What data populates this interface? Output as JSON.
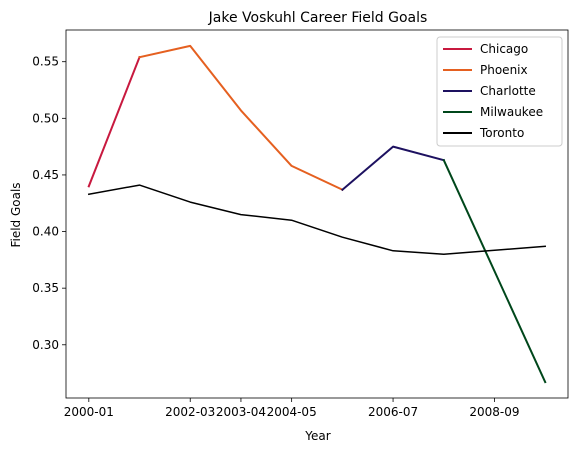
{
  "chart_data": {
    "type": "line",
    "title": "Jake Voskuhl Career Field Goals",
    "xlabel": "Year",
    "ylabel": "Field Goals",
    "x": [
      "2000-01",
      "2001-02",
      "2002-03",
      "2003-04",
      "2004-05",
      "2005-06",
      "2006-07",
      "2007-08",
      "2008-09",
      "2009-10"
    ],
    "xticks": [
      "2000-01",
      "2002-03",
      "2003-04",
      "2004-05",
      "2006-07",
      "2008-09"
    ],
    "yticks": [
      "0.30",
      "0.35",
      "0.40",
      "0.45",
      "0.50",
      "0.55"
    ],
    "ylim": [
      0.253,
      0.578
    ],
    "grid": false,
    "legend_position": "top-right",
    "series": [
      {
        "name": "Chicago",
        "color": "#c8193f",
        "points": [
          [
            "2000-01",
            0.44
          ],
          [
            "2001-02",
            0.554
          ]
        ]
      },
      {
        "name": "Phoenix",
        "color": "#e56020",
        "points": [
          [
            "2001-02",
            0.554
          ],
          [
            "2002-03",
            0.564
          ],
          [
            "2003-04",
            0.507
          ],
          [
            "2004-05",
            0.458
          ],
          [
            "2005-06",
            0.437
          ]
        ]
      },
      {
        "name": "Charlotte",
        "color": "#1d1160",
        "points": [
          [
            "2005-06",
            0.437
          ],
          [
            "2006-07",
            0.475
          ],
          [
            "2007-08",
            0.463
          ]
        ]
      },
      {
        "name": "Milwaukee",
        "color": "#00471b",
        "points": [
          [
            "2007-08",
            0.463
          ],
          [
            "2009-10",
            0.267
          ]
        ]
      },
      {
        "name": "Toronto",
        "color": "#000000",
        "points": [
          [
            "2000-01",
            0.433
          ],
          [
            "2001-02",
            0.441
          ],
          [
            "2002-03",
            0.426
          ],
          [
            "2003-04",
            0.415
          ],
          [
            "2004-05",
            0.41
          ],
          [
            "2005-06",
            0.395
          ],
          [
            "2006-07",
            0.383
          ],
          [
            "2007-08",
            0.38
          ],
          [
            "2009-10",
            0.387
          ]
        ]
      }
    ]
  }
}
